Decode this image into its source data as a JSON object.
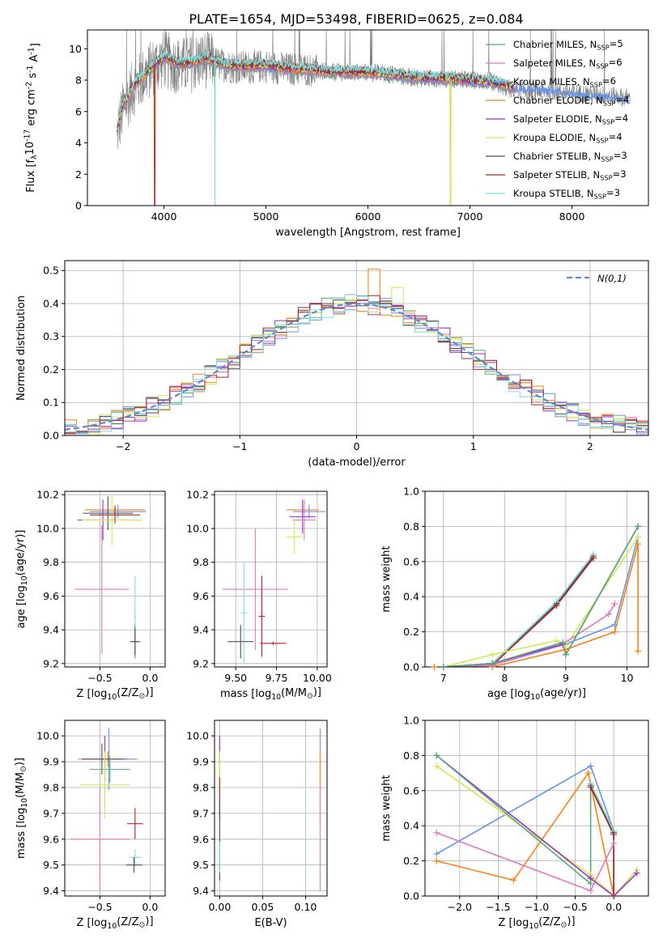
{
  "figure": {
    "title": "PLATE=1654, MJD=53498, FIBERID=0625, z=0.084"
  },
  "colors": {
    "data": "#808080",
    "normal": "#5b8ad6",
    "axes": "#000000",
    "grid": "#b0b0b0"
  },
  "models": [
    {
      "label": "Chabrier MILES, N$_{SSP}$=5",
      "color": "#56a97c"
    },
    {
      "label": "Salpeter MILES, N$_{SSP}$=6",
      "color": "#e377c2"
    },
    {
      "label": "Kroupa MILES, N$_{SSP}$=6",
      "color": "#6495ed"
    },
    {
      "label": "Chabrier ELODIE, N$_{SSP}$=4",
      "color": "#ff7f0e"
    },
    {
      "label": "Salpeter ELODIE, N$_{SSP}$=4",
      "color": "#9932cc"
    },
    {
      "label": "Kroupa ELODIE, N$_{SSP}$=4",
      "color": "#d4e84f"
    },
    {
      "label": "Chabrier STELIB, N$_{SSP}$=3",
      "color": "#505050"
    },
    {
      "label": "Salpeter STELIB, N$_{SSP}$=3",
      "color": "#b22222"
    },
    {
      "label": "Kroupa STELIB, N$_{SSP}$=3",
      "color": "#7fdddd"
    }
  ],
  "chart_data": [
    {
      "id": "spectrum",
      "type": "line",
      "title": "PLATE=1654, MJD=53498, FIBERID=0625, z=0.084",
      "xlabel": "wavelength [Angstrom, rest frame]",
      "ylabel": "Flux [f$_\\lambda$10$^{-17}$ erg cm$^{-2}$ s$^{-1}$ A$^{-1}$]",
      "xlim": [
        3250,
        8750
      ],
      "ylim": [
        0,
        11.2
      ],
      "xticks": [
        4000,
        5000,
        6000,
        7000,
        8000
      ],
      "yticks": [
        0,
        2,
        4,
        6,
        8,
        10
      ],
      "grid": false,
      "legend": "upper right",
      "data_x": [
        3540,
        3600,
        3700,
        3800,
        3900,
        4000,
        4100,
        4200,
        4400,
        4600,
        4800,
        5000,
        5200,
        5400,
        5600,
        5800,
        6000,
        6200,
        6400,
        6600,
        6800,
        7000,
        7200,
        7400,
        7600,
        7800,
        8000,
        8200,
        8400,
        8600
      ],
      "data_y": [
        4.6,
        6.2,
        7.5,
        8.2,
        8.9,
        9.3,
        9.0,
        8.9,
        9.3,
        8.9,
        8.8,
        8.9,
        8.7,
        8.7,
        8.5,
        8.5,
        8.5,
        8.4,
        8.2,
        8.1,
        8.1,
        8.0,
        7.9,
        7.4,
        7.3,
        7.3,
        7.2,
        7.1,
        7.0,
        6.8
      ],
      "model_y": [
        4.9,
        6.4,
        7.6,
        8.3,
        9.0,
        9.5,
        9.2,
        9.0,
        9.4,
        9.0,
        8.9,
        8.95,
        8.75,
        8.7,
        8.55,
        8.5,
        8.5,
        8.4,
        8.25,
        8.15,
        8.1,
        8.0,
        7.9,
        7.6,
        7.5,
        7.4,
        7.2,
        7.1,
        7.0,
        6.8
      ],
      "data_range_end": 8570,
      "model_range_end": 7430
    },
    {
      "id": "residuals",
      "type": "line",
      "xlabel": "(data-model)/error",
      "ylabel": "Normed distribution",
      "xlim": [
        -2.5,
        2.5
      ],
      "ylim": [
        0,
        0.53
      ],
      "xticks": [
        -2,
        -1,
        0,
        1,
        2
      ],
      "yticks": [
        0.0,
        0.1,
        0.2,
        0.3,
        0.4,
        0.5
      ],
      "grid": true,
      "legend": "upper right",
      "normal_label": "$\\mathcal{N}(0,1)$",
      "bin_width": 0.1,
      "bin_start": -2.5
    },
    {
      "id": "age-Z",
      "type": "scatter",
      "xlabel": "Z [log$_{10}$(Z/Z$_\\odot$)]",
      "ylabel": "age  [log$_{10}$(age/yr)]",
      "xlim": [
        -0.85,
        0.15
      ],
      "ylim": [
        9.18,
        10.22
      ],
      "xticks": [
        -0.5,
        0.0
      ],
      "yticks": [
        9.2,
        9.4,
        9.6,
        9.8,
        10.0,
        10.2
      ],
      "grid": true,
      "points": [
        {
          "x": -0.35,
          "y": 10.11,
          "xerr": 0.3,
          "yerr": 0.03,
          "c": 3
        },
        {
          "x": -0.32,
          "y": 10.1,
          "xerr": 0.28,
          "yerr": 0.04,
          "c": 2
        },
        {
          "x": -0.42,
          "y": 10.09,
          "xerr": 0.25,
          "yerr": 0.1,
          "c": 6
        },
        {
          "x": -0.47,
          "y": 10.05,
          "xerr": 0.25,
          "yerr": 0.12,
          "c": 4
        },
        {
          "x": -0.38,
          "y": 10.05,
          "xerr": 0.3,
          "yerr": 0.15,
          "c": 5
        },
        {
          "x": -0.35,
          "y": 10.08,
          "xerr": 0.25,
          "yerr": 0.05,
          "c": 7
        },
        {
          "x": -0.48,
          "y": 9.64,
          "xerr": 0.27,
          "yerr": 0.38,
          "c": 1
        },
        {
          "x": -0.15,
          "y": 9.48,
          "xerr": 0.01,
          "yerr": 0.24,
          "c": 8
        },
        {
          "x": -0.15,
          "y": 9.33,
          "xerr": 0.05,
          "yerr": 0.1,
          "c": 0
        },
        {
          "x": -0.15,
          "y": 9.33,
          "xerr": 0.05,
          "yerr": 0.08,
          "c": 6
        }
      ]
    },
    {
      "id": "age-mass",
      "type": "scatter",
      "xlabel": "mass [log$_{10}$(M/M$_\\odot$)]",
      "ylabel": "",
      "xlim": [
        9.37,
        10.06
      ],
      "ylim": [
        9.18,
        10.22
      ],
      "xticks": [
        9.5,
        9.75,
        10.0
      ],
      "yticks": [
        9.2,
        9.4,
        9.6,
        9.8,
        10.0,
        10.2
      ],
      "grid": true,
      "points": [
        {
          "x": 9.91,
          "y": 10.11,
          "xerr": 0.1,
          "yerr": 0.03,
          "c": 3
        },
        {
          "x": 9.95,
          "y": 10.1,
          "xerr": 0.1,
          "yerr": 0.04,
          "c": 2
        },
        {
          "x": 9.91,
          "y": 10.07,
          "xerr": 0.08,
          "yerr": 0.1,
          "c": 4
        },
        {
          "x": 9.92,
          "y": 10.05,
          "xerr": 0.07,
          "yerr": 0.12,
          "c": 1
        },
        {
          "x": 9.86,
          "y": 9.95,
          "xerr": 0.05,
          "yerr": 0.1,
          "c": 5
        },
        {
          "x": 9.62,
          "y": 9.64,
          "xerr": 0.2,
          "yerr": 0.36,
          "c": 1
        },
        {
          "x": 9.66,
          "y": 9.48,
          "xerr": 0.02,
          "yerr": 0.24,
          "c": 7
        },
        {
          "x": 9.55,
          "y": 9.5,
          "xerr": 0.02,
          "yerr": 0.3,
          "c": 8
        },
        {
          "x": 9.53,
          "y": 9.33,
          "xerr": 0.08,
          "yerr": 0.1,
          "c": 6
        },
        {
          "x": 9.73,
          "y": 9.32,
          "xerr": 0.08,
          "yerr": 0.01,
          "c": 7
        }
      ]
    },
    {
      "id": "weight-age",
      "type": "line",
      "xlabel": "age  [log$_{10}$(age/yr)]",
      "ylabel": "mass weight",
      "xlim": [
        6.7,
        10.35
      ],
      "ylim": [
        0,
        1.0
      ],
      "xticks": [
        7,
        8,
        9,
        10
      ],
      "yticks": [
        0.0,
        0.2,
        0.4,
        0.6,
        0.8,
        1.0
      ],
      "grid": true,
      "series": [
        {
          "c": 0,
          "x": [
            7.0,
            7.8,
            8.85,
            9.45
          ],
          "y": [
            0.0,
            0.02,
            0.37,
            0.64
          ]
        },
        {
          "c": 6,
          "x": [
            7.0,
            7.8,
            8.85,
            9.45
          ],
          "y": [
            0.0,
            0.02,
            0.36,
            0.63
          ]
        },
        {
          "c": 8,
          "x": [
            7.0,
            7.8,
            8.85,
            9.45
          ],
          "y": [
            0.0,
            0.02,
            0.37,
            0.64
          ]
        },
        {
          "c": 7,
          "x": [
            7.0,
            7.8,
            8.85,
            9.45
          ],
          "y": [
            0.0,
            0.01,
            0.35,
            0.62
          ]
        },
        {
          "c": 2,
          "x": [
            7.0,
            7.8,
            9.0,
            9.8,
            10.18
          ],
          "y": [
            0.0,
            0.01,
            0.13,
            0.24,
            0.74
          ]
        },
        {
          "c": 3,
          "x": [
            6.85,
            7.8,
            9.0,
            9.8,
            10.18,
            10.18
          ],
          "y": [
            0.0,
            0.0,
            0.1,
            0.2,
            0.7,
            0.09
          ]
        },
        {
          "c": 5,
          "x": [
            7.0,
            7.8,
            8.85,
            9.0,
            10.18
          ],
          "y": [
            0.0,
            0.07,
            0.15,
            0.12,
            0.74
          ]
        },
        {
          "c": 1,
          "x": [
            7.0,
            7.8,
            8.95,
            9.7,
            9.8
          ],
          "y": [
            0.0,
            0.01,
            0.13,
            0.3,
            0.36
          ]
        },
        {
          "c": 4,
          "x": [
            7.0,
            7.8,
            8.95,
            9.0,
            10.18
          ],
          "y": [
            0.0,
            0.02,
            0.13,
            0.07,
            0.8
          ]
        },
        {
          "c": 0,
          "x": [
            7.0,
            7.8,
            8.95,
            9.0,
            10.18
          ],
          "y": [
            0.0,
            0.02,
            0.14,
            0.07,
            0.8
          ]
        }
      ]
    },
    {
      "id": "mass-Z",
      "type": "scatter",
      "xlabel": "Z [log$_{10}$(Z/Z$_\\odot$)]",
      "ylabel": "mass [log$_{10}$(M/M$_\\odot$)]",
      "xlim": [
        -0.85,
        0.15
      ],
      "ylim": [
        9.38,
        10.06
      ],
      "xticks": [
        -0.5,
        0.0
      ],
      "yticks": [
        9.4,
        9.5,
        9.6,
        9.7,
        9.8,
        9.9,
        10.0
      ],
      "grid": true,
      "points": [
        {
          "x": -0.42,
          "y": 9.91,
          "xerr": 0.3,
          "yerr": 0.03,
          "c": 3
        },
        {
          "x": -0.41,
          "y": 9.91,
          "xerr": 0.27,
          "yerr": 0.12,
          "c": 2
        },
        {
          "x": -0.45,
          "y": 9.91,
          "xerr": 0.22,
          "yerr": 0.09,
          "c": 4
        },
        {
          "x": -0.48,
          "y": 9.91,
          "xerr": 0.2,
          "yerr": 0.06,
          "c": 6
        },
        {
          "x": -0.4,
          "y": 9.87,
          "xerr": 0.2,
          "yerr": 0.05,
          "c": 0
        },
        {
          "x": -0.45,
          "y": 9.81,
          "xerr": 0.25,
          "yerr": 0.13,
          "c": 5
        },
        {
          "x": -0.5,
          "y": 9.6,
          "xerr": 0.3,
          "yerr": 0.2,
          "c": 1
        },
        {
          "x": -0.15,
          "y": 9.66,
          "xerr": 0.08,
          "yerr": 0.06,
          "c": 7
        },
        {
          "x": -0.15,
          "y": 9.53,
          "xerr": 0.06,
          "yerr": 0.03,
          "c": 8
        },
        {
          "x": -0.16,
          "y": 9.5,
          "xerr": 0.08,
          "yerr": 0.03,
          "c": 6
        }
      ]
    },
    {
      "id": "mass-EBV",
      "type": "scatter",
      "xlabel": "E(B-V)",
      "ylabel": "",
      "xlim": [
        -0.006,
        0.125
      ],
      "ylim": [
        9.38,
        10.06
      ],
      "xticks": [
        0.0,
        0.05,
        0.1
      ],
      "yticks": [
        9.4,
        9.5,
        9.6,
        9.7,
        9.8,
        9.9,
        10.0
      ],
      "grid": true,
      "points": [
        {
          "x": 0.0,
          "y": 9.91,
          "xerr": 0.0,
          "yerr": 0.09,
          "c": 4
        },
        {
          "x": 0.0,
          "y": 9.81,
          "xerr": 0.0,
          "yerr": 0.13,
          "c": 5
        },
        {
          "x": 0.0,
          "y": 9.76,
          "xerr": 0.0,
          "yerr": 0.08,
          "c": 7
        },
        {
          "x": 0.0,
          "y": 9.6,
          "xerr": 0.0,
          "yerr": 0.16,
          "c": 6
        },
        {
          "x": 0.0,
          "y": 9.53,
          "xerr": 0.0,
          "yerr": 0.06,
          "c": 8
        },
        {
          "x": 0.117,
          "y": 9.85,
          "xerr": 0.0,
          "yerr": 0.18,
          "c": 2
        },
        {
          "x": 0.117,
          "y": 9.8,
          "xerr": 0.0,
          "yerr": 0.14,
          "c": 3
        },
        {
          "x": 0.117,
          "y": 9.6,
          "xerr": 0.0,
          "yerr": 0.2,
          "c": 1
        }
      ]
    },
    {
      "id": "weight-Z",
      "type": "line",
      "xlabel": "Z [log$_{10}$(Z/Z$_\\odot$)]",
      "ylabel": "mass weight",
      "xlim": [
        -2.45,
        0.45
      ],
      "ylim": [
        0,
        1.0
      ],
      "xticks": [
        -2.0,
        -1.5,
        -1.0,
        -0.5,
        0.0
      ],
      "yticks": [
        0.0,
        0.2,
        0.4,
        0.6,
        0.8,
        1.0
      ],
      "grid": true,
      "series": [
        {
          "c": 2,
          "x": [
            -2.3,
            -0.3,
            0.0,
            0.0
          ],
          "y": [
            0.24,
            0.74,
            0.37,
            0.0
          ]
        },
        {
          "c": 3,
          "x": [
            -2.3,
            -1.3,
            -0.33,
            0.0
          ],
          "y": [
            0.2,
            0.09,
            0.7,
            0.0
          ]
        },
        {
          "c": 1,
          "x": [
            -2.3,
            -0.3,
            0.0,
            0.0
          ],
          "y": [
            0.36,
            0.03,
            0.3,
            0.0
          ]
        },
        {
          "c": 5,
          "x": [
            -2.3,
            -0.3,
            0.0,
            0.3
          ],
          "y": [
            0.74,
            0.12,
            0.0,
            0.15
          ]
        },
        {
          "c": 4,
          "x": [
            -2.3,
            -0.3,
            0.0,
            0.3
          ],
          "y": [
            0.8,
            0.1,
            0.0,
            0.13
          ]
        },
        {
          "c": 0,
          "x": [
            -2.3,
            -0.3,
            -0.3,
            0.0,
            0.0
          ],
          "y": [
            0.8,
            0.07,
            0.64,
            0.37,
            0.0
          ]
        },
        {
          "c": 6,
          "x": [
            -0.3,
            0.0,
            0.0
          ],
          "y": [
            0.63,
            0.36,
            0.0
          ]
        },
        {
          "c": 8,
          "x": [
            -0.3,
            0.0,
            0.0
          ],
          "y": [
            0.64,
            0.37,
            0.0
          ]
        },
        {
          "c": 7,
          "x": [
            -0.3,
            0.0,
            0.0
          ],
          "y": [
            0.62,
            0.35,
            0.0
          ]
        }
      ]
    }
  ]
}
